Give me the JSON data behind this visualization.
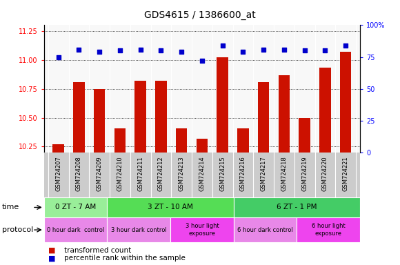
{
  "title": "GDS4615 / 1386600_at",
  "samples": [
    "GSM724207",
    "GSM724208",
    "GSM724209",
    "GSM724210",
    "GSM724211",
    "GSM724212",
    "GSM724213",
    "GSM724214",
    "GSM724215",
    "GSM724216",
    "GSM724217",
    "GSM724218",
    "GSM724219",
    "GSM724220",
    "GSM724221"
  ],
  "red_values": [
    10.27,
    10.81,
    10.75,
    10.41,
    10.82,
    10.82,
    10.41,
    10.32,
    11.02,
    10.41,
    10.81,
    10.87,
    10.5,
    10.93,
    11.07
  ],
  "blue_values": [
    75,
    81,
    79,
    80,
    81,
    80,
    79,
    72,
    84,
    79,
    81,
    81,
    80,
    80,
    84
  ],
  "ylim_left": [
    10.2,
    11.3
  ],
  "ylim_right": [
    0,
    100
  ],
  "yticks_left": [
    10.25,
    10.5,
    10.75,
    11.0,
    11.25
  ],
  "yticks_right": [
    0,
    25,
    50,
    75,
    100
  ],
  "time_groups": [
    {
      "label": "0 ZT - 7 AM",
      "start": 0,
      "end": 3,
      "color": "#99EE99"
    },
    {
      "label": "3 ZT - 10 AM",
      "start": 3,
      "end": 9,
      "color": "#55DD55"
    },
    {
      "label": "6 ZT - 1 PM",
      "start": 9,
      "end": 15,
      "color": "#44CC66"
    }
  ],
  "protocol_groups": [
    {
      "label": "0 hour dark  control",
      "start": 0,
      "end": 3,
      "color": "#E888E8"
    },
    {
      "label": "3 hour dark control",
      "start": 3,
      "end": 6,
      "color": "#E888E8"
    },
    {
      "label": "3 hour light\nexposure",
      "start": 6,
      "end": 9,
      "color": "#EE44EE"
    },
    {
      "label": "6 hour dark control",
      "start": 9,
      "end": 12,
      "color": "#E888E8"
    },
    {
      "label": "6 hour light\nexposure",
      "start": 12,
      "end": 15,
      "color": "#EE44EE"
    }
  ],
  "bar_color": "#CC1100",
  "dot_color": "#0000CC",
  "legend_red": "transformed count",
  "legend_blue": "percentile rank within the sample",
  "time_label": "time",
  "protocol_label": "protocol",
  "xlabel_bg": "#CCCCCC"
}
